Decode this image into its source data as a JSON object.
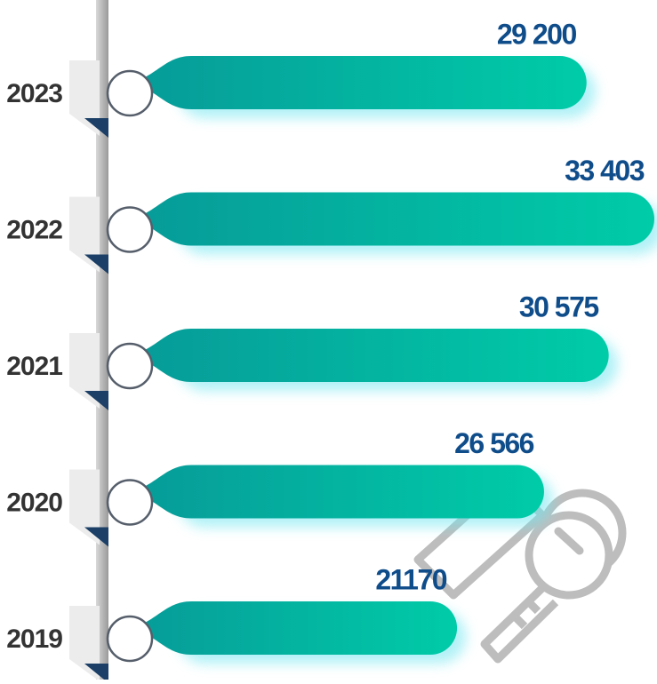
{
  "chart_data": {
    "type": "bar",
    "categories": [
      "2023",
      "2022",
      "2021",
      "2020",
      "2019"
    ],
    "values": [
      29200,
      33403,
      30575,
      26566,
      21170
    ],
    "value_labels": [
      "29 200",
      "33 403",
      "30 575",
      "26 566",
      "21170"
    ],
    "color": "#00b8a0"
  }
}
